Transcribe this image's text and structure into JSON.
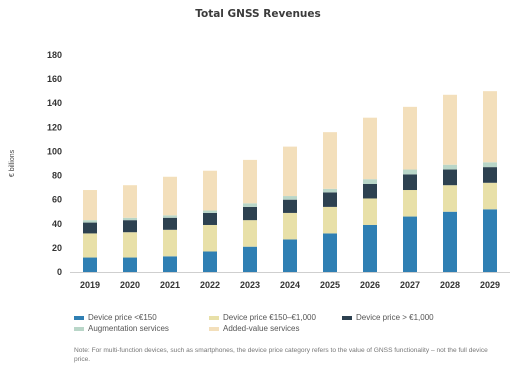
{
  "chart_data": {
    "type": "bar",
    "stacked": true,
    "title": "Total GNSS Revenues",
    "ylabel": "€ billions",
    "ylim": [
      0,
      180
    ],
    "yticks": [
      0,
      20,
      40,
      60,
      80,
      100,
      120,
      140,
      160,
      180
    ],
    "grid": false,
    "legend_position": "bottom",
    "categories": [
      "2019",
      "2020",
      "2021",
      "2022",
      "2023",
      "2024",
      "2025",
      "2026",
      "2027",
      "2028",
      "2029"
    ],
    "series": [
      {
        "name": "Device price <€150",
        "color": "#2f7fb3",
        "values": [
          12,
          12,
          13,
          17,
          21,
          27,
          32,
          39,
          46,
          50,
          52
        ]
      },
      {
        "name": "Device price €150–€1,000",
        "color": "#e8e0a8",
        "values": [
          20,
          21,
          22,
          22,
          22,
          22,
          22,
          22,
          22,
          22,
          22
        ]
      },
      {
        "name": "Device price > €1,000",
        "color": "#2d4150",
        "values": [
          9,
          10,
          10,
          10,
          11,
          11,
          12,
          12,
          13,
          13,
          13
        ]
      },
      {
        "name": "Augmentation services",
        "color": "#b9d6c8",
        "values": [
          2,
          2,
          2,
          2,
          3,
          3,
          3,
          4,
          4,
          4,
          4
        ]
      },
      {
        "name": "Added-value services",
        "color": "#f3dfbb",
        "values": [
          25,
          27,
          32,
          33,
          36,
          41,
          47,
          51,
          52,
          58,
          59
        ]
      }
    ]
  },
  "note": "Note: For multi-function devices, such as smartphones, the device price category refers to the value of GNSS functionality – not the full device price."
}
